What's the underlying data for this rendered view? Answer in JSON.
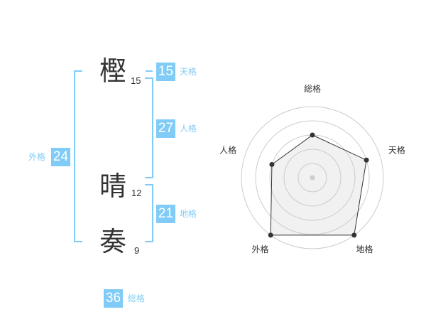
{
  "name": {
    "characters": [
      {
        "char": "樫",
        "strokes": "15"
      },
      {
        "char": "晴",
        "strokes": "12"
      },
      {
        "char": "奏",
        "strokes": "9"
      }
    ]
  },
  "kaku": {
    "tenkaku": {
      "label": "天格",
      "value": "15"
    },
    "jinkaku": {
      "label": "人格",
      "value": "27"
    },
    "chikaku": {
      "label": "地格",
      "value": "21"
    },
    "gaikaku": {
      "label": "外格",
      "value": "24"
    },
    "soukaku": {
      "label": "総格",
      "value": "36"
    }
  },
  "colors": {
    "accent": "#80ccf7",
    "text": "#333333"
  },
  "chart_data": {
    "type": "radar",
    "axes": [
      "総格",
      "天格",
      "地格",
      "外格",
      "人格"
    ],
    "values": [
      3,
      4,
      5,
      5,
      3
    ],
    "range": [
      0,
      5
    ],
    "rings": 5
  }
}
